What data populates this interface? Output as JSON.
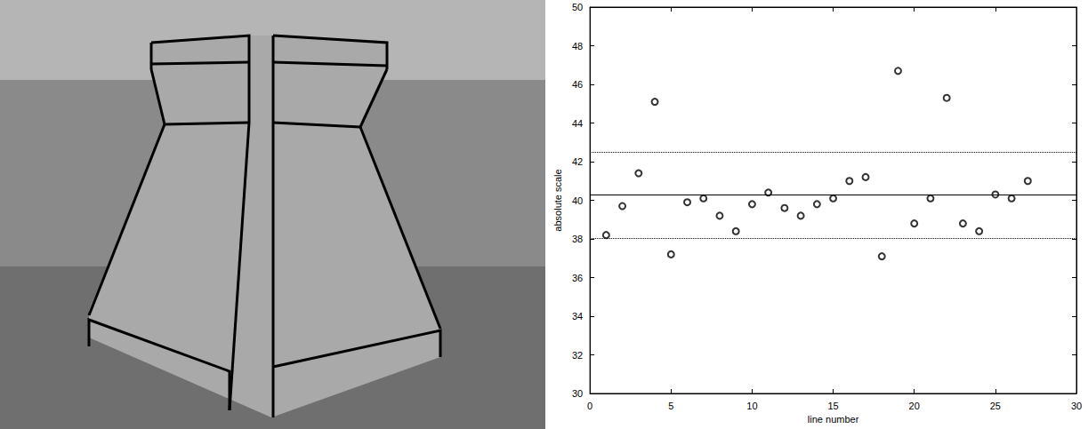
{
  "chart_data": {
    "type": "scatter",
    "x_label": "line number",
    "y_label": "absolute scale",
    "x": [
      1,
      2,
      3,
      4,
      5,
      6,
      7,
      8,
      9,
      10,
      11,
      12,
      13,
      14,
      15,
      16,
      17,
      18,
      19,
      20,
      21,
      22,
      23,
      24,
      25,
      26,
      27
    ],
    "values": [
      38.2,
      39.7,
      41.4,
      45.1,
      37.2,
      39.9,
      40.1,
      39.2,
      38.4,
      39.8,
      40.4,
      39.6,
      39.2,
      39.8,
      40.1,
      41.0,
      41.2,
      37.1,
      46.7,
      38.8,
      40.1,
      45.3,
      38.8,
      38.4,
      40.3,
      40.1,
      41.0
    ],
    "color": "#000000",
    "marker": "circle",
    "lines": [
      {
        "value": 40.3,
        "line_style": "solid"
      },
      {
        "value": 42.5,
        "line_style": "dotted"
      },
      {
        "value": 38.05,
        "line_style": "dotted"
      }
    ],
    "xlim": [
      0,
      30
    ],
    "xticks": [
      0,
      5,
      10,
      15,
      20,
      25,
      30
    ],
    "ylim": [
      30,
      50
    ],
    "yticks": [
      30,
      32,
      34,
      36,
      38,
      40,
      42,
      44,
      46,
      48,
      50
    ],
    "grid": false
  }
}
